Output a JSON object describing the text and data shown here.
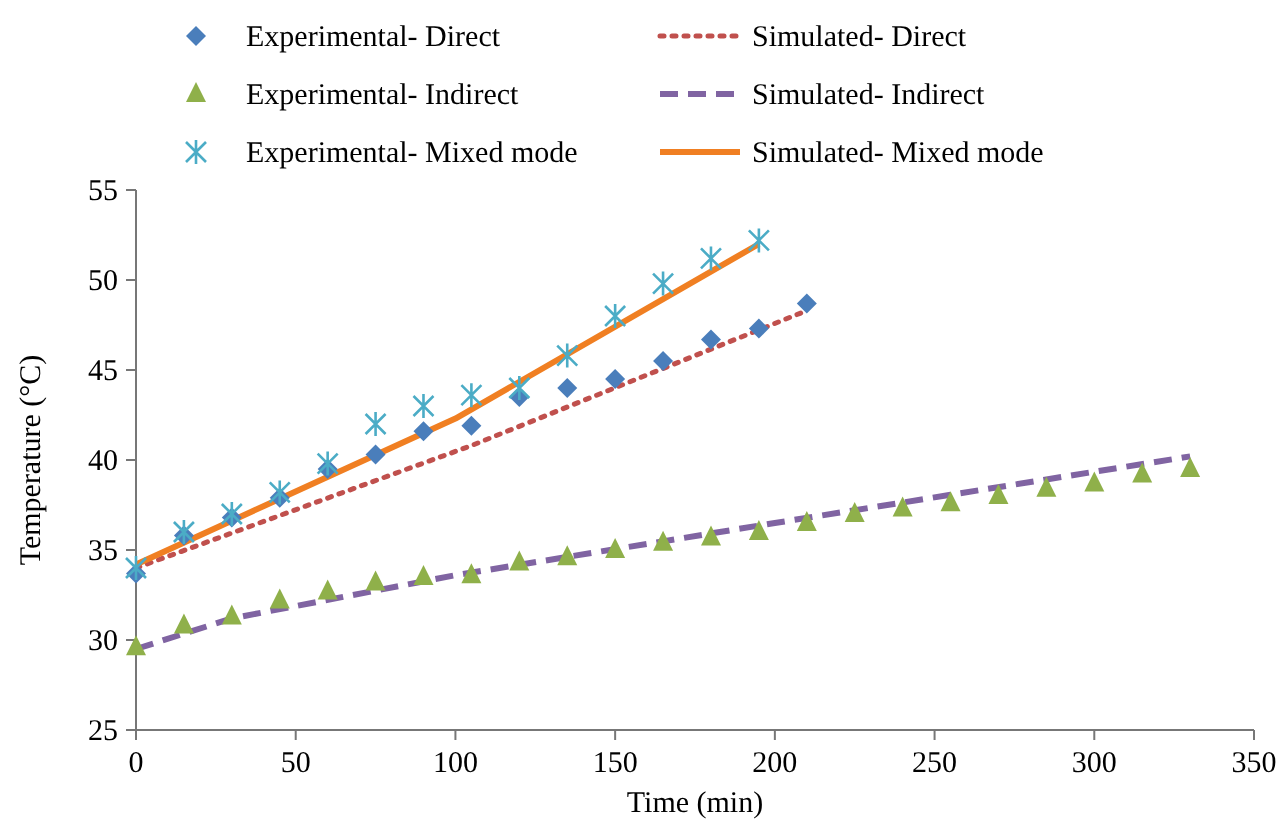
{
  "chart_data": {
    "type": "scatter",
    "xlabel": "Time  (min)",
    "ylabel": "Temperature  (°C)",
    "xlim": [
      0,
      350
    ],
    "xticks": [
      0,
      50,
      100,
      150,
      200,
      250,
      300,
      350
    ],
    "ylim": [
      25,
      55
    ],
    "yticks": [
      25,
      30,
      35,
      40,
      45,
      50,
      55
    ],
    "legend": "top",
    "grid": false,
    "series": [
      {
        "name": "Experimental- Direct",
        "marker": "diamond",
        "color": "#4a7ebb",
        "x": [
          0,
          15,
          30,
          45,
          60,
          75,
          90,
          105,
          120,
          135,
          150,
          165,
          180,
          195,
          210
        ],
        "values": [
          33.7,
          35.8,
          36.8,
          37.9,
          39.5,
          40.3,
          41.6,
          41.9,
          43.5,
          44.0,
          44.5,
          45.5,
          46.7,
          47.3,
          48.7
        ]
      },
      {
        "name": "Experimental- Indirect",
        "marker": "triangle",
        "color": "#8fb04a",
        "x": [
          0,
          15,
          30,
          45,
          60,
          75,
          90,
          105,
          120,
          135,
          150,
          165,
          180,
          195,
          210,
          225,
          240,
          255,
          270,
          285,
          300,
          315,
          330
        ],
        "values": [
          29.6,
          30.8,
          31.3,
          32.2,
          32.7,
          33.2,
          33.5,
          33.6,
          34.3,
          34.6,
          35.0,
          35.4,
          35.7,
          36.0,
          36.5,
          37.0,
          37.3,
          37.6,
          38.0,
          38.4,
          38.7,
          39.2,
          39.5
        ]
      },
      {
        "name": "Experimental- Mixed mode",
        "marker": "cross",
        "color": "#4bacc6",
        "x": [
          0,
          15,
          30,
          45,
          60,
          75,
          90,
          105,
          120,
          135,
          150,
          165,
          180,
          195
        ],
        "values": [
          34.0,
          36.0,
          37.0,
          38.2,
          39.8,
          42.0,
          43.0,
          43.6,
          44.0,
          45.8,
          48.0,
          49.8,
          51.2,
          52.2
        ]
      },
      {
        "name": "Simulated- Direct",
        "type": "line",
        "line_style": "dotted",
        "marker": "none",
        "color": "#c0504d",
        "x": [
          0,
          105,
          210
        ],
        "values": [
          34.0,
          40.8,
          48.3
        ]
      },
      {
        "name": "Simulated- Indirect",
        "type": "line",
        "line_style": "dashed",
        "marker": "none",
        "color": "#8064a2",
        "x": [
          0,
          30,
          100,
          200,
          330
        ],
        "values": [
          29.5,
          31.2,
          33.6,
          36.5,
          40.2
        ]
      },
      {
        "name": "Simulated- Mixed mode",
        "type": "line",
        "line_style": "solid",
        "marker": "none",
        "color": "#f07f22",
        "x": [
          0,
          100,
          195
        ],
        "values": [
          34.2,
          42.3,
          52.0
        ]
      }
    ]
  }
}
